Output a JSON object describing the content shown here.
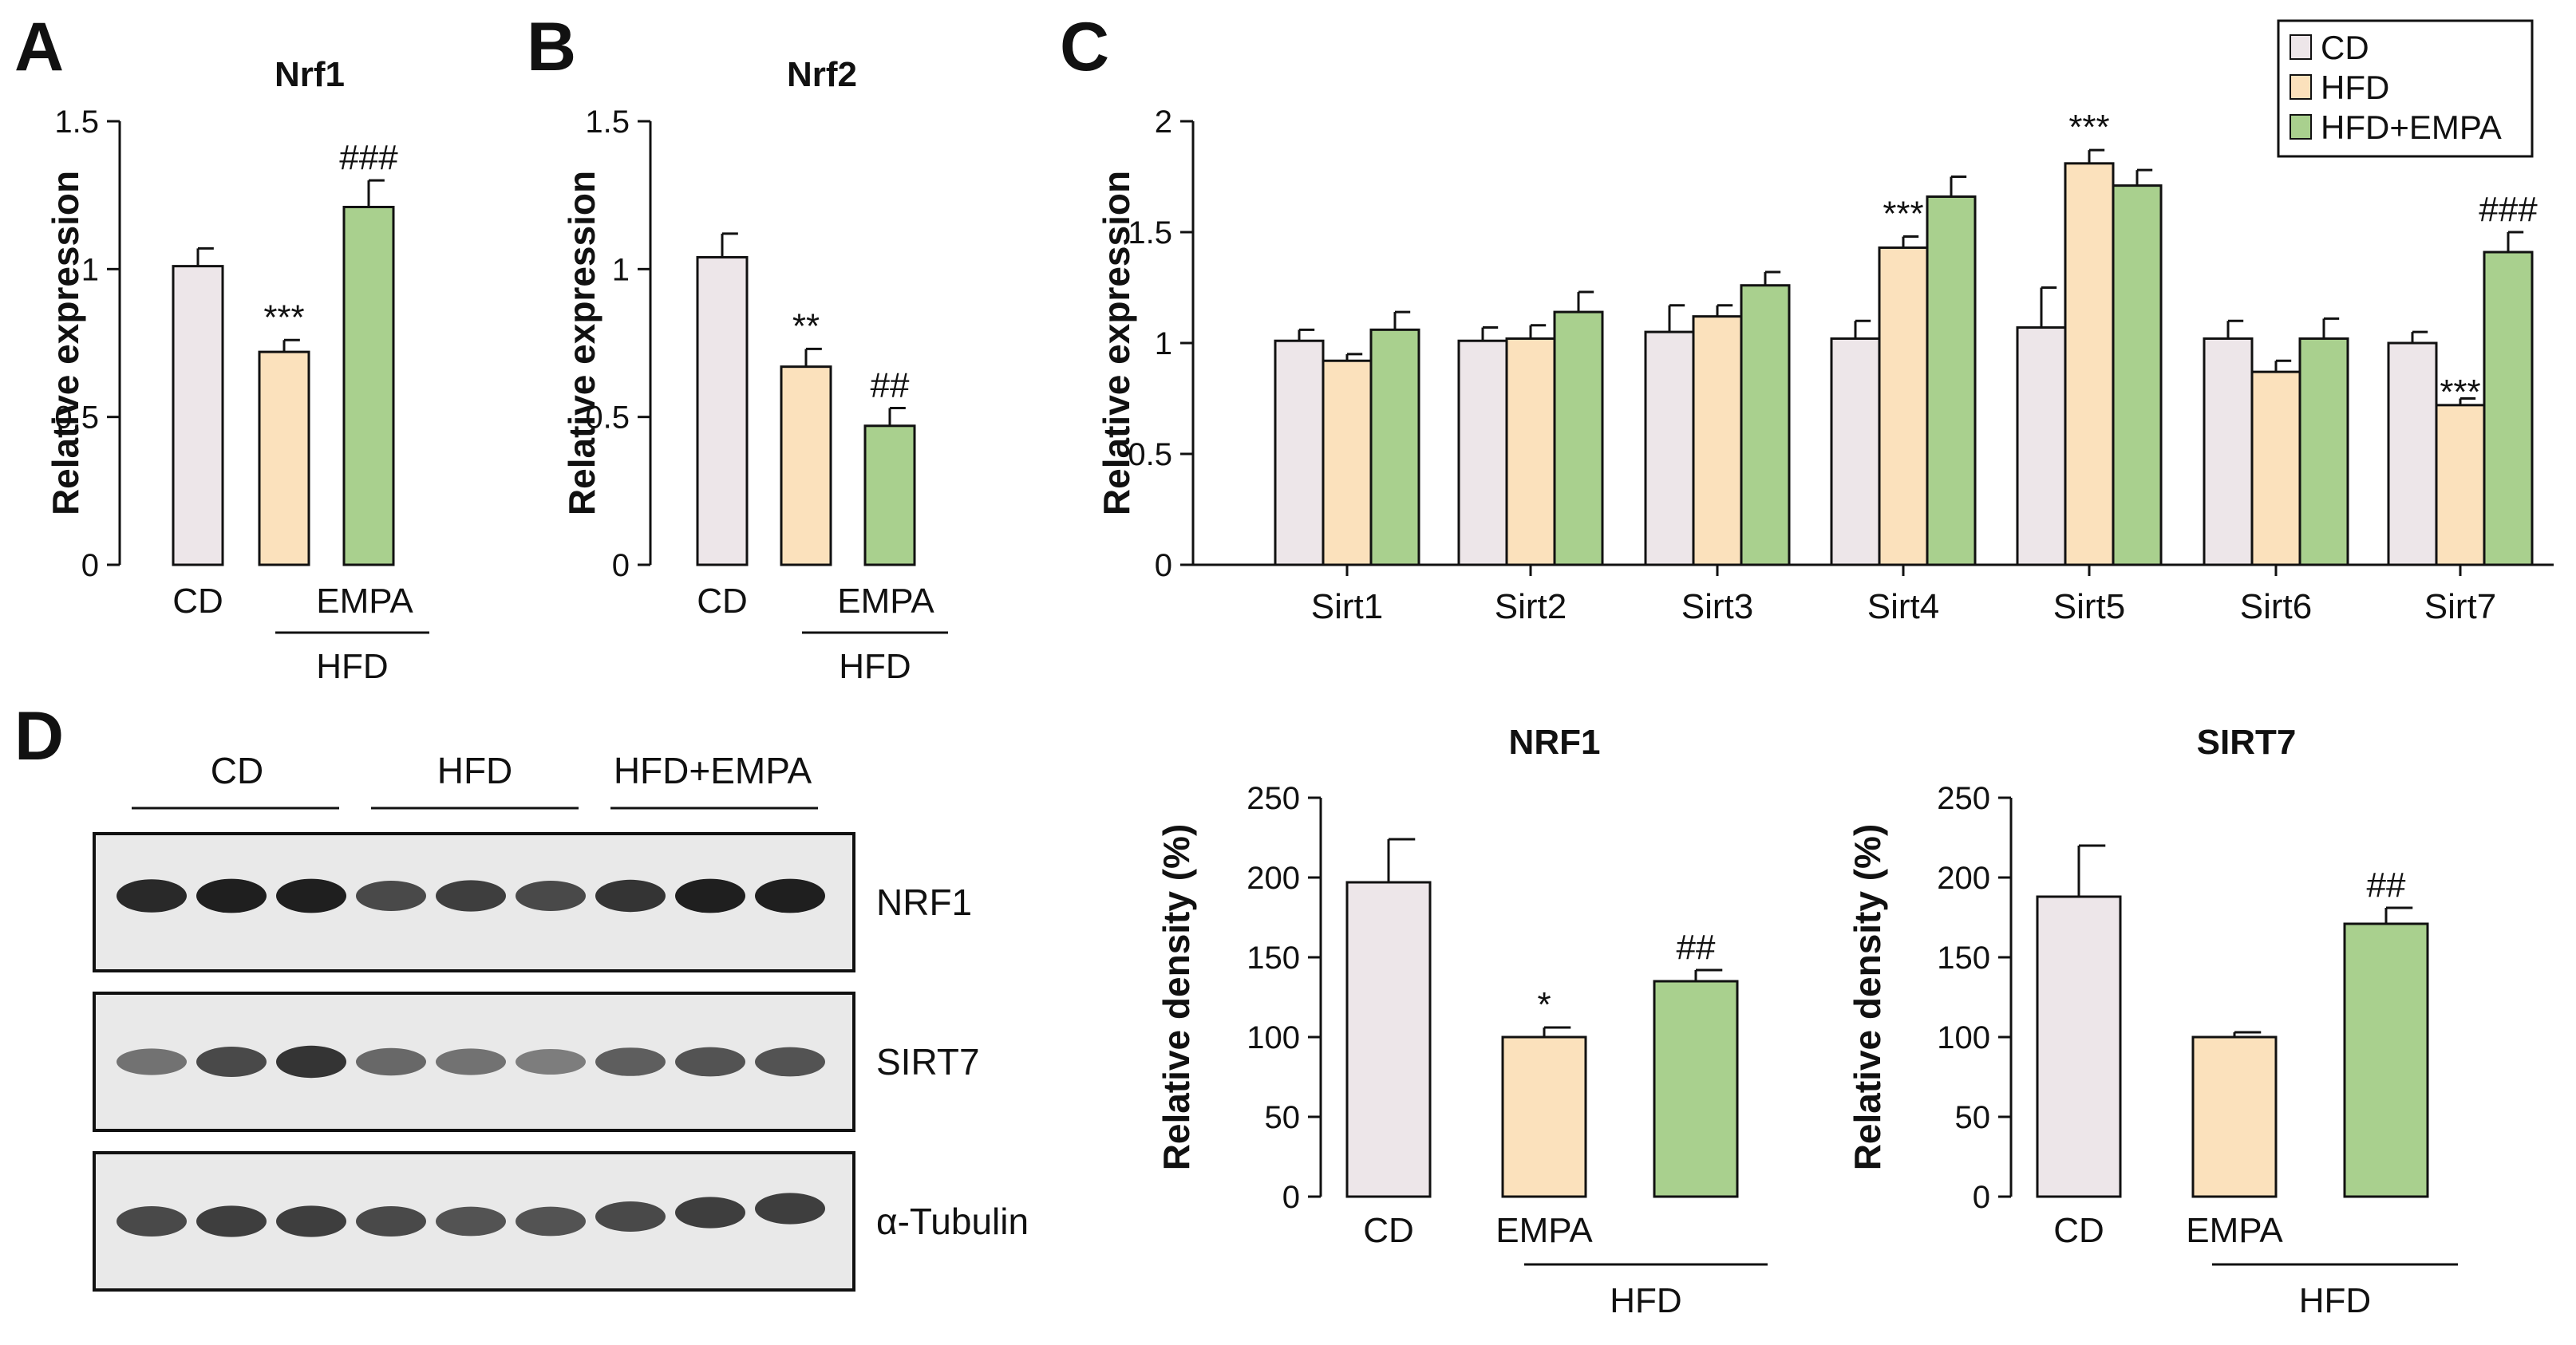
{
  "colors": {
    "CD": "#ede6e9",
    "HFD": "#fbe1bc",
    "HFD+EMPA": "#a9d08e",
    "stroke": "#111111"
  },
  "legend": {
    "items": [
      "CD",
      "HFD",
      "HFD+EMPA"
    ]
  },
  "chart_data": [
    {
      "id": "A",
      "type": "bar",
      "panel_label": "A",
      "title": "Nrf1",
      "ylabel": "Relative expression",
      "ylim": [
        0,
        1.5
      ],
      "yticks": [
        "0",
        "0.5",
        "1",
        "1.5"
      ],
      "categories": [
        "CD",
        "HFD",
        "HFD+EMPA"
      ],
      "xtick_labels": [
        "CD",
        "",
        "EMPA"
      ],
      "group_label": "HFD",
      "values": [
        1.01,
        0.72,
        1.21
      ],
      "errors": [
        0.06,
        0.04,
        0.09
      ],
      "annotations": [
        "",
        "***",
        "###"
      ]
    },
    {
      "id": "B",
      "type": "bar",
      "panel_label": "B",
      "title": "Nrf2",
      "ylabel": "Relative expression",
      "ylim": [
        0,
        1.5
      ],
      "yticks": [
        "0",
        "0.5",
        "1",
        "1.5"
      ],
      "categories": [
        "CD",
        "HFD",
        "HFD+EMPA"
      ],
      "xtick_labels": [
        "CD",
        "",
        "EMPA"
      ],
      "group_label": "HFD",
      "values": [
        1.04,
        0.67,
        0.47
      ],
      "errors": [
        0.08,
        0.06,
        0.06
      ],
      "annotations": [
        "",
        "**",
        "##"
      ]
    },
    {
      "id": "C",
      "type": "bar",
      "panel_label": "C",
      "title": "",
      "ylabel": "Relative expression",
      "ylim": [
        0,
        2
      ],
      "yticks": [
        "0",
        "0.5",
        "1",
        "1.5",
        "2"
      ],
      "categories": [
        "Sirt1",
        "Sirt2",
        "Sirt3",
        "Sirt4",
        "Sirt5",
        "Sirt6",
        "Sirt7"
      ],
      "series": [
        {
          "name": "CD",
          "values": [
            1.01,
            1.01,
            1.05,
            1.02,
            1.07,
            1.02,
            1.0
          ],
          "errors": [
            0.05,
            0.06,
            0.12,
            0.08,
            0.18,
            0.08,
            0.05
          ]
        },
        {
          "name": "HFD",
          "values": [
            0.92,
            1.02,
            1.12,
            1.43,
            1.81,
            0.87,
            0.72
          ],
          "errors": [
            0.03,
            0.06,
            0.05,
            0.05,
            0.06,
            0.05,
            0.03
          ]
        },
        {
          "name": "HFD+EMPA",
          "values": [
            1.06,
            1.14,
            1.26,
            1.66,
            1.71,
            1.02,
            1.41
          ],
          "errors": [
            0.08,
            0.09,
            0.06,
            0.09,
            0.07,
            0.09,
            0.09
          ]
        }
      ],
      "annotations": [
        {
          "category": "Sirt4",
          "series": "HFD",
          "text": "***"
        },
        {
          "category": "Sirt5",
          "series": "HFD",
          "text": "***"
        },
        {
          "category": "Sirt7",
          "series": "HFD",
          "text": "***"
        },
        {
          "category": "Sirt7",
          "series": "HFD+EMPA",
          "text": "###"
        }
      ]
    },
    {
      "id": "D1",
      "type": "bar",
      "title": "NRF1",
      "ylabel": "Relative density (%)",
      "ylim": [
        0,
        250
      ],
      "yticks": [
        "0",
        "50",
        "100",
        "150",
        "200",
        "250"
      ],
      "categories": [
        "CD",
        "HFD",
        "HFD+EMPA"
      ],
      "xtick_labels": [
        "CD",
        "EMPA",
        ""
      ],
      "group_label": "HFD",
      "values": [
        197,
        100,
        135
      ],
      "errors": [
        27,
        6,
        7
      ],
      "annotations": [
        "",
        "*",
        "##"
      ]
    },
    {
      "id": "D2",
      "type": "bar",
      "title": "SIRT7",
      "ylabel": "Relative density (%)",
      "ylim": [
        0,
        250
      ],
      "yticks": [
        "0",
        "50",
        "100",
        "150",
        "200",
        "250"
      ],
      "categories": [
        "CD",
        "HFD",
        "HFD+EMPA"
      ],
      "xtick_labels": [
        "CD",
        "EMPA",
        ""
      ],
      "group_label": "HFD",
      "values": [
        188,
        100,
        171
      ],
      "errors": [
        32,
        3,
        10
      ],
      "annotations": [
        "",
        "",
        "##"
      ]
    }
  ],
  "blot": {
    "panel_label": "D",
    "groups": [
      "CD",
      "HFD",
      "HFD+EMPA"
    ],
    "rows": [
      {
        "label": "NRF1",
        "intensity": [
          0.9,
          0.95,
          0.95,
          0.75,
          0.8,
          0.75,
          0.85,
          0.95,
          0.95
        ]
      },
      {
        "label": "SIRT7",
        "intensity": [
          0.55,
          0.75,
          0.85,
          0.6,
          0.55,
          0.5,
          0.65,
          0.7,
          0.7
        ]
      },
      {
        "label": "α-Tubulin",
        "intensity": [
          0.75,
          0.8,
          0.8,
          0.75,
          0.7,
          0.7,
          0.75,
          0.8,
          0.8
        ]
      }
    ]
  }
}
